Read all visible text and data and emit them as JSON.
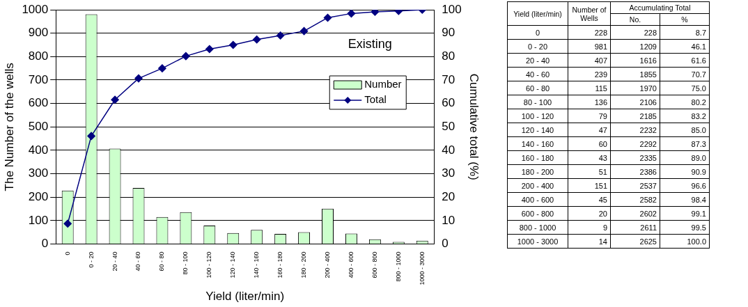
{
  "chart_data": [
    {
      "type": "bar",
      "xlabel": "Yield (liter/min)",
      "ylabel": "The Number of the wells",
      "y2label": "Cumulative total (%)",
      "categories": [
        "0",
        "0 - 20",
        "20 - 40",
        "40 - 60",
        "60 - 80",
        "80 - 100",
        "100 - 120",
        "120 - 140",
        "140 - 160",
        "160 - 180",
        "180 - 200",
        "200 - 400",
        "400 - 600",
        "600 - 800",
        "800 - 1000",
        "1000 - 3000"
      ],
      "series": [
        {
          "name": "Number",
          "type": "bar",
          "color": "#ccffcc",
          "values": [
            228,
            981,
            407,
            239,
            115,
            136,
            79,
            47,
            60,
            43,
            51,
            151,
            45,
            20,
            9,
            14
          ]
        },
        {
          "name": "Total",
          "type": "line",
          "axis": "y2",
          "color": "#000080",
          "marker": "diamond",
          "values": [
            8.7,
            46.1,
            61.6,
            70.7,
            75.0,
            80.2,
            83.2,
            85.0,
            87.3,
            89.0,
            90.9,
            96.6,
            98.4,
            99.1,
            99.5,
            100.0
          ]
        }
      ],
      "ylim": [
        0,
        1000
      ],
      "yticks": [
        0,
        100,
        200,
        300,
        400,
        500,
        600,
        700,
        800,
        900,
        1000
      ],
      "y2lim": [
        0,
        100
      ],
      "y2ticks": [
        0,
        10,
        20,
        30,
        40,
        50,
        60,
        70,
        80,
        90,
        100
      ],
      "grid": "y",
      "legend": "right",
      "annotations": [
        "Existing"
      ]
    },
    {
      "type": "other",
      "xlabel": "Yield (liter/min)",
      "categories": [
        "0",
        "0 - 20",
        "20 - 40",
        "40 - 60",
        "60 - 80",
        "80 - 100",
        "100 - 120",
        "120 - 140",
        "140 - 160",
        "160 - 180",
        "180 - 200",
        "200 - 400",
        "400 - 600",
        "600 - 800",
        "800 - 1000",
        "1000 - 3000"
      ],
      "series": [
        {
          "name": "Number of Wells",
          "values": [
            228,
            981,
            407,
            239,
            115,
            136,
            79,
            47,
            60,
            43,
            51,
            151,
            45,
            20,
            9,
            14
          ]
        },
        {
          "name": "No.",
          "values": [
            228,
            1209,
            1616,
            1855,
            1970,
            2106,
            2185,
            2232,
            2292,
            2335,
            2386,
            2537,
            2582,
            2602,
            2611,
            2625
          ]
        },
        {
          "name": "%",
          "values": [
            8.7,
            46.1,
            61.6,
            70.7,
            75.0,
            80.2,
            83.2,
            85.0,
            87.3,
            89.0,
            90.9,
            96.6,
            98.4,
            99.1,
            99.5,
            100.0
          ],
          "value_labels": [
            "8.7",
            "46.1",
            "61.6",
            "70.7",
            "75.0",
            "80.2",
            "83.2",
            "85.0",
            "87.3",
            "89.0",
            "90.9",
            "96.6",
            "98.4",
            "99.1",
            "99.5",
            "100.0"
          ]
        }
      ],
      "data_labels": true,
      "annotations": [
        "Accumulating Total"
      ]
    }
  ]
}
